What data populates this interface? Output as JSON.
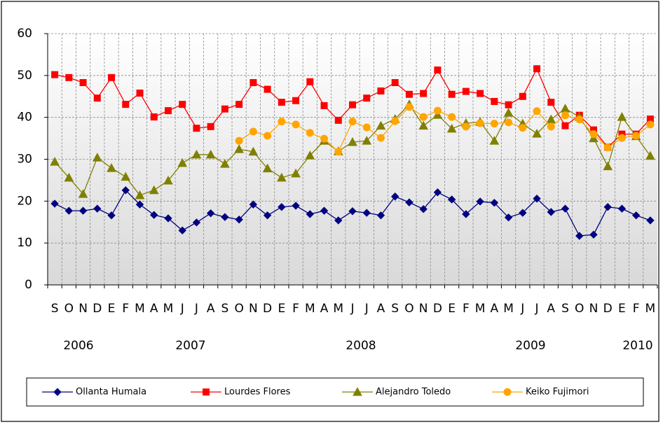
{
  "chart_data": {
    "type": "line",
    "categories": [
      "S",
      "O",
      "N",
      "D",
      "E",
      "F",
      "M",
      "A",
      "M",
      "J",
      "J",
      "A",
      "S",
      "O",
      "N",
      "D",
      "E",
      "F",
      "M",
      "A",
      "M",
      "J",
      "J",
      "A",
      "S",
      "O",
      "N",
      "D",
      "E",
      "F",
      "M",
      "A",
      "M",
      "J",
      "J",
      "A",
      "S",
      "O",
      "N",
      "D",
      "E",
      "F",
      "M"
    ],
    "years": [
      "2006",
      "2007",
      "2008",
      "2009",
      "2010"
    ],
    "ylim": [
      0,
      60
    ],
    "yticks": [
      0,
      10,
      20,
      30,
      40,
      50,
      60
    ],
    "grid": true,
    "series": [
      {
        "name": "Ollanta Humala",
        "color": "#000080",
        "marker": "diamond",
        "values": [
          19.4,
          17.7,
          17.7,
          18.2,
          16.6,
          22.6,
          19.2,
          16.7,
          15.9,
          13.0,
          14.9,
          17.1,
          16.2,
          15.6,
          19.2,
          16.6,
          18.6,
          18.9,
          16.9,
          17.7,
          15.4,
          17.6,
          17.2,
          16.6,
          21.1,
          19.7,
          18.1,
          22.1,
          20.4,
          16.9,
          19.9,
          19.6,
          16.1,
          17.2,
          20.6,
          17.4,
          18.2,
          11.7,
          12.0,
          18.6,
          18.2,
          16.6,
          15.4
        ]
      },
      {
        "name": "Lourdes Flores",
        "color": "#ff0000",
        "marker": "square",
        "values": [
          50.2,
          49.5,
          48.3,
          44.6,
          49.5,
          43.1,
          45.8,
          40.1,
          41.6,
          43.1,
          37.4,
          37.8,
          42.0,
          43.1,
          48.3,
          46.7,
          43.6,
          44.0,
          48.5,
          42.8,
          39.3,
          43.0,
          44.6,
          46.3,
          48.3,
          45.5,
          45.7,
          51.3,
          45.5,
          46.2,
          45.7,
          43.8,
          43.0,
          45.0,
          51.6,
          43.6,
          38.0,
          40.5,
          37.0,
          32.9,
          36.0,
          36.0,
          39.6
        ]
      },
      {
        "name": "Alejandro Toledo",
        "color": "#808000",
        "marker": "triangle",
        "values": [
          29.4,
          25.6,
          21.7,
          30.4,
          27.9,
          25.8,
          21.4,
          22.6,
          24.9,
          29.1,
          31.1,
          31.1,
          28.9,
          32.4,
          31.8,
          27.8,
          25.6,
          26.6,
          30.9,
          34.4,
          31.9,
          34.1,
          34.4,
          38.0,
          39.6,
          43.1,
          38.0,
          40.6,
          37.3,
          38.6,
          38.9,
          34.4,
          41.1,
          38.5,
          36.1,
          39.5,
          42.1,
          40.1,
          35.0,
          28.3,
          40.1,
          35.5,
          30.8
        ]
      },
      {
        "name": "Keiko Fujimori",
        "color": "#ffa500",
        "marker": "circle",
        "values": [
          null,
          null,
          null,
          null,
          null,
          null,
          null,
          null,
          null,
          null,
          null,
          null,
          null,
          34.4,
          36.6,
          35.6,
          39.0,
          38.3,
          36.3,
          34.9,
          31.8,
          39.0,
          37.6,
          35.1,
          39.1,
          42.5,
          40.1,
          41.6,
          40.1,
          37.8,
          38.6,
          38.5,
          38.8,
          37.5,
          41.5,
          37.8,
          40.5,
          39.5,
          36.0,
          32.8,
          35.1,
          35.6,
          38.3
        ]
      }
    ]
  }
}
